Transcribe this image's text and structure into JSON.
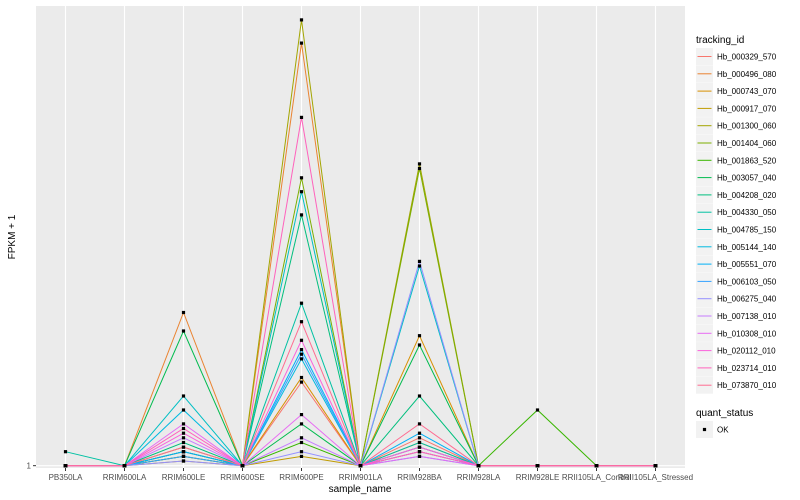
{
  "chart_data": {
    "type": "line",
    "xlabel": "sample_name",
    "ylabel": "FPKM + 1",
    "y_tick_labels": [
      "1"
    ],
    "categories": [
      "PB350LA",
      "RRIM600LA",
      "RRIM600LE",
      "RRIM600SE",
      "RRIM600PE",
      "RRIM901LA",
      "RRIM928BA",
      "RRIM928LA",
      "RRIM928LE",
      "RRII105LA_Control",
      "RRII105LA_Stressed"
    ],
    "ylim": [
      0.95,
      10.9
    ],
    "grid": true,
    "legend_position": "right",
    "legend_title": "tracking_id",
    "shape_legend_title": "quant_status",
    "shape_legend_items": [
      "OK"
    ],
    "series": [
      {
        "name": "Hb_000329_570",
        "color": "#F8766D",
        "values": [
          1,
          1,
          1.3,
          1,
          2.8,
          1,
          1.6,
          1,
          1,
          1,
          1
        ]
      },
      {
        "name": "Hb_000496_080",
        "color": "#EA8331",
        "values": [
          1,
          1,
          4.3,
          1,
          10.1,
          1,
          1.5,
          1,
          1,
          1,
          1
        ]
      },
      {
        "name": "Hb_000743_070",
        "color": "#D89000",
        "values": [
          1,
          1,
          1.2,
          1,
          2.9,
          1,
          3.8,
          1,
          1,
          1,
          1
        ]
      },
      {
        "name": "Hb_000917_070",
        "color": "#C09B00",
        "values": [
          1,
          1,
          1.1,
          1,
          1.2,
          1,
          1.4,
          1,
          1,
          1,
          1
        ]
      },
      {
        "name": "Hb_001300_060",
        "color": "#A3A500",
        "values": [
          1,
          1,
          1.3,
          1,
          10.6,
          1,
          7.5,
          1,
          1,
          1,
          1
        ]
      },
      {
        "name": "Hb_001404_060",
        "color": "#7CAE00",
        "values": [
          1,
          1,
          1.4,
          1,
          7.2,
          1,
          7.4,
          1,
          1,
          1,
          1
        ]
      },
      {
        "name": "Hb_001863_520",
        "color": "#39B600",
        "values": [
          1,
          1,
          1.2,
          1,
          1.5,
          1,
          1.3,
          1,
          2.2,
          1,
          1
        ]
      },
      {
        "name": "Hb_003057_040",
        "color": "#00BB4E",
        "values": [
          1,
          1,
          3.9,
          1,
          1.9,
          1,
          3.6,
          1,
          1,
          1,
          1
        ]
      },
      {
        "name": "Hb_004208_020",
        "color": "#00BF7D",
        "values": [
          1,
          1,
          1.5,
          1,
          6.4,
          1,
          2.5,
          1,
          1,
          1,
          1
        ]
      },
      {
        "name": "Hb_004330_050",
        "color": "#00C1A3",
        "values": [
          1.3,
          1,
          1.3,
          1,
          4.5,
          1,
          1.5,
          1,
          1,
          1,
          1
        ]
      },
      {
        "name": "Hb_004785_150",
        "color": "#00BFC4",
        "values": [
          1,
          1,
          2.5,
          1,
          6.9,
          1,
          5.3,
          1,
          1,
          1,
          1
        ]
      },
      {
        "name": "Hb_005144_140",
        "color": "#00BAE0",
        "values": [
          1,
          1,
          2.2,
          1,
          3.3,
          1,
          1.4,
          1,
          1,
          1,
          1
        ]
      },
      {
        "name": "Hb_005551_070",
        "color": "#00B0F6",
        "values": [
          1,
          1,
          1.3,
          1,
          3.5,
          1,
          1.7,
          1,
          1,
          1,
          1
        ]
      },
      {
        "name": "Hb_006103_050",
        "color": "#35A2FF",
        "values": [
          1,
          1,
          1.2,
          1,
          3.4,
          1,
          1.2,
          1,
          1,
          1,
          1
        ]
      },
      {
        "name": "Hb_006275_040",
        "color": "#9590FF",
        "values": [
          1,
          1,
          1.1,
          1,
          1.3,
          1,
          5.4,
          1,
          1,
          1,
          1
        ]
      },
      {
        "name": "Hb_007138_010",
        "color": "#C77CFF",
        "values": [
          1,
          1,
          1.6,
          1,
          1.6,
          1,
          1.3,
          1,
          1,
          1,
          1
        ]
      },
      {
        "name": "Hb_010308_010",
        "color": "#E76BF3",
        "values": [
          1,
          1,
          1.9,
          1,
          2.1,
          1,
          1.2,
          1,
          1,
          1,
          1
        ]
      },
      {
        "name": "Hb_020112_010",
        "color": "#FA62DB",
        "values": [
          1,
          1,
          1.7,
          1,
          3.7,
          1,
          1.4,
          1,
          1,
          1,
          1
        ]
      },
      {
        "name": "Hb_023714_010",
        "color": "#FF62BC",
        "values": [
          1,
          1,
          1.8,
          1,
          8.5,
          1,
          1.3,
          1,
          1,
          1,
          1
        ]
      },
      {
        "name": "Hb_073870_010",
        "color": "#FF6C91",
        "values": [
          1,
          1,
          1.4,
          1,
          4.1,
          1,
          1.9,
          1,
          1,
          1,
          1
        ]
      }
    ]
  }
}
